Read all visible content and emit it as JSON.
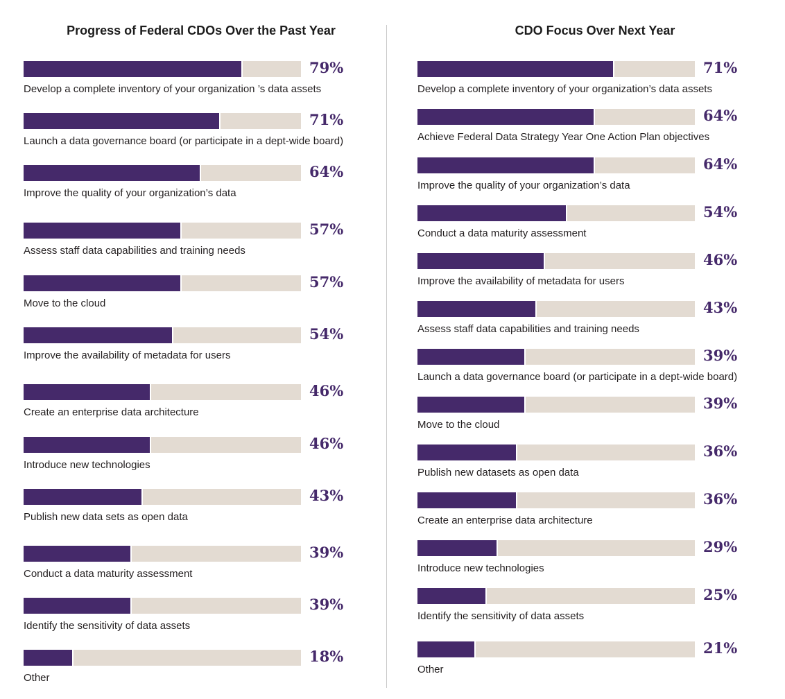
{
  "chart_data": [
    {
      "type": "bar",
      "orientation": "horizontal",
      "title": "Progress of Federal CDOs Over the Past Year",
      "value_suffix": "%",
      "xlim": [
        0,
        100
      ],
      "categories": [
        "Develop a complete inventory of your organization ’s data assets",
        "Launch a data governance board (or participate in a dept-wide board)",
        "Improve the quality of your organization’s data",
        "Assess staff data capabilities and training needs",
        "Move to the cloud",
        "Improve the availability of metadata for users",
        "Create an enterprise data architecture",
        "Introduce new technologies",
        "Publish new data sets as open data",
        "Conduct a data maturity assessment",
        "Identify the sensitivity of data assets",
        "Other"
      ],
      "values": [
        79,
        71,
        64,
        57,
        57,
        54,
        46,
        46,
        43,
        39,
        39,
        18
      ],
      "labels": [
        "79%",
        "71%",
        "64%",
        "57%",
        "57%",
        "54%",
        "46%",
        "46%",
        "43%",
        "39%",
        "39%",
        "18%"
      ],
      "colors": {
        "fill": "#45296a",
        "track": "#e3dbd2",
        "value_text": "#45296a"
      }
    },
    {
      "type": "bar",
      "orientation": "horizontal",
      "title": "CDO Focus Over Next Year",
      "value_suffix": "%",
      "xlim": [
        0,
        100
      ],
      "categories": [
        "Develop a complete inventory of your organization’s data assets",
        "Achieve Federal Data Strategy Year One Action Plan objectives",
        "Improve the quality of your organization’s data",
        "Conduct a data maturity assessment",
        "Improve the availability of metadata for users",
        "Assess staff data capabilities and training needs",
        "Launch a data governance board (or participate in a dept-wide board)",
        "Move to the cloud",
        "Publish new datasets as open data",
        "Create an enterprise data architecture",
        "Introduce new technologies",
        "Identify the sensitivity of data assets",
        "Other"
      ],
      "values": [
        71,
        64,
        64,
        54,
        46,
        43,
        39,
        39,
        36,
        36,
        29,
        25,
        21
      ],
      "labels": [
        "71%",
        "64%",
        "64%",
        "54%",
        "46%",
        "43%",
        "39%",
        "39%",
        "36%",
        "36%",
        "29%",
        "25%",
        "21%"
      ],
      "colors": {
        "fill": "#45296a",
        "track": "#e3dbd2",
        "value_text": "#45296a"
      }
    }
  ]
}
